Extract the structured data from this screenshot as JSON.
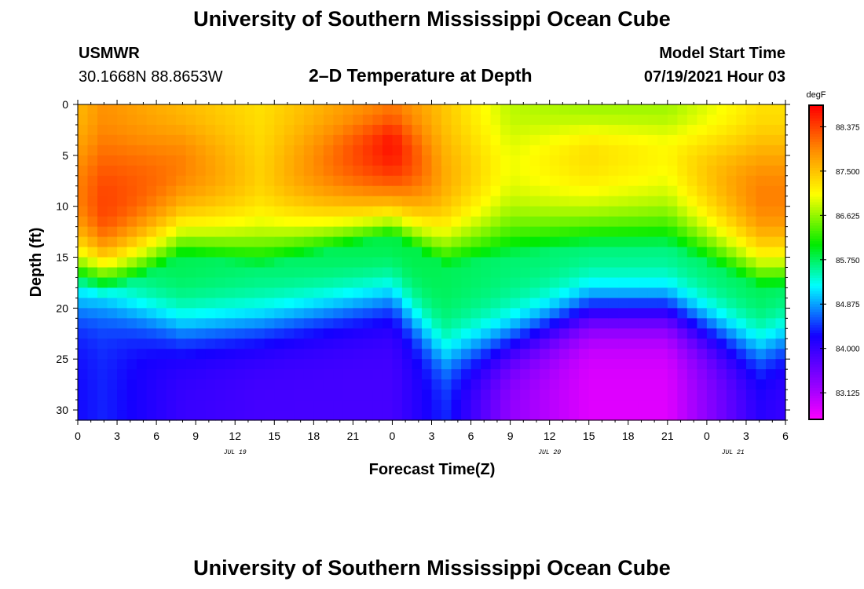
{
  "header": {
    "title_top": "University of Southern Mississippi Ocean Cube",
    "title_bottom": "University of Southern Mississippi Ocean Cube",
    "station_id": "USMWR",
    "coordinates": "30.1668N  88.8653W",
    "plot_title": "2–D Temperature at Depth",
    "model_start_label": "Model Start Time",
    "model_start_value": "07/19/2021 Hour 03"
  },
  "chart_data": {
    "type": "heatmap",
    "title": "2–D Temperature at Depth",
    "xlabel": "Forecast Time(Z)",
    "ylabel": "Depth (ft)",
    "units": "degF",
    "x_tick_labels": [
      "0",
      "3",
      "6",
      "9",
      "12",
      "15",
      "18",
      "21",
      "0",
      "3",
      "6",
      "9",
      "12",
      "15",
      "18",
      "21",
      "0",
      "3",
      "6"
    ],
    "date_labels": [
      {
        "text": "JUL 19",
        "hour_index": 12
      },
      {
        "text": "JUL 20",
        "hour_index": 36
      },
      {
        "text": "JUL 21",
        "hour_index": 50
      }
    ],
    "x_range_hours": [
      0,
      54
    ],
    "y_range_ft": [
      0,
      31
    ],
    "y_ticks": [
      0,
      5,
      10,
      15,
      20,
      25,
      30
    ],
    "colorbar_ticks": [
      "88.375",
      "87.500",
      "86.625",
      "85.750",
      "84.875",
      "84.000",
      "83.125"
    ],
    "colorbar_values": [
      88.375,
      87.5,
      86.625,
      85.75,
      84.875,
      84.0,
      83.125
    ],
    "color_range": [
      82.6,
      88.8
    ],
    "time_hours": [
      0,
      2,
      8,
      14,
      24,
      28,
      33,
      39,
      45,
      52,
      54
    ],
    "surface_temp": [
      87.6,
      87.9,
      87.6,
      87.3,
      88.1,
      87.5,
      86.8,
      86.7,
      86.7,
      87.3,
      87.3
    ],
    "peak_depth_ft": [
      9,
      10,
      6,
      7,
      4,
      7,
      6,
      5,
      5,
      9,
      9
    ],
    "peak_temp": [
      88.0,
      88.4,
      88.0,
      87.4,
      88.7,
      87.7,
      87.0,
      87.3,
      87.1,
      88.0,
      88.0
    ],
    "thermocline_depth_ft": [
      19,
      19,
      22,
      21.5,
      19,
      24.5,
      23,
      20,
      20,
      24,
      23
    ],
    "bottom_temp": [
      84.3,
      84.4,
      84.0,
      83.9,
      83.9,
      84.4,
      83.3,
      82.8,
      82.8,
      84.1,
      84.0
    ]
  }
}
